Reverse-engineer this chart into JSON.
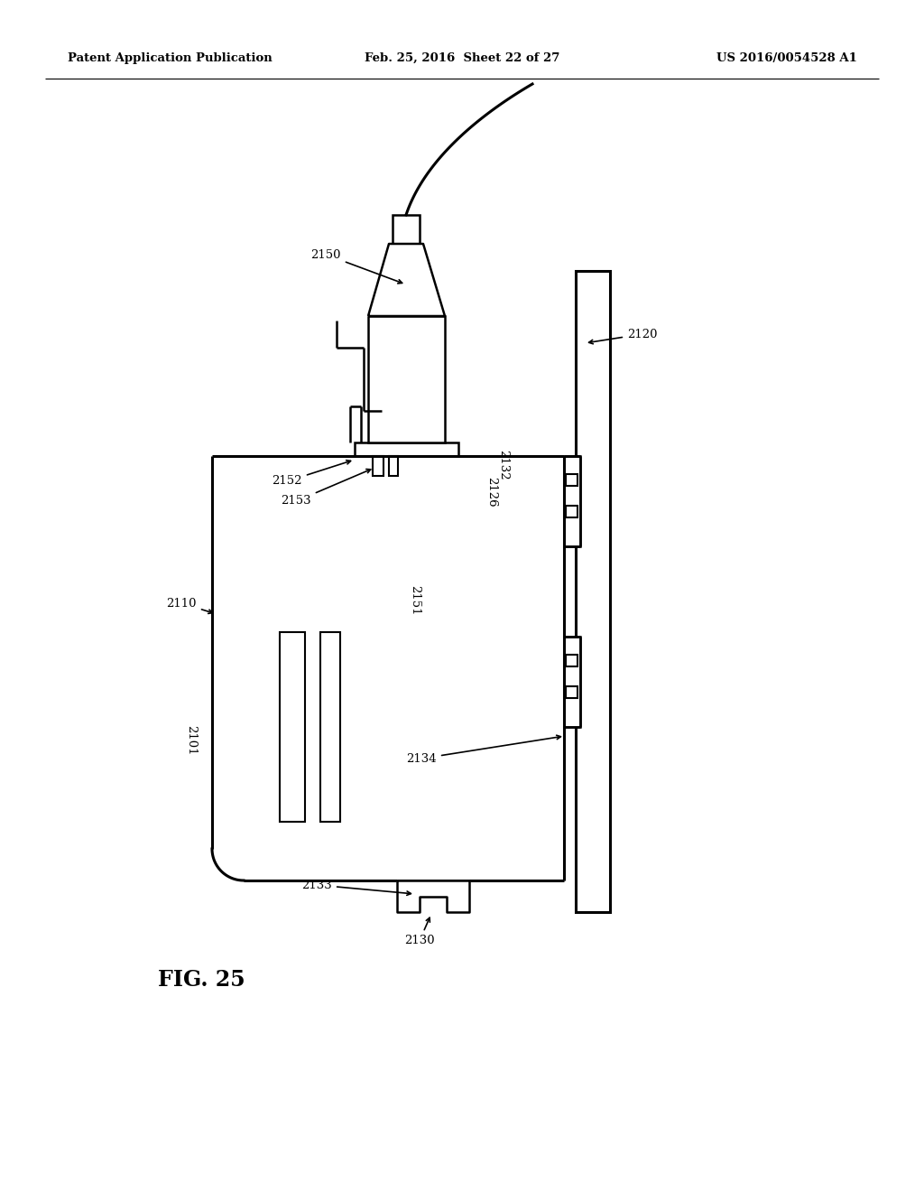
{
  "bg_color": "#ffffff",
  "lc": "#000000",
  "header_left": "Patent Application Publication",
  "header_mid": "Feb. 25, 2016  Sheet 22 of 27",
  "header_right": "US 2016/0054528 A1",
  "fig_label": "FIG. 25"
}
